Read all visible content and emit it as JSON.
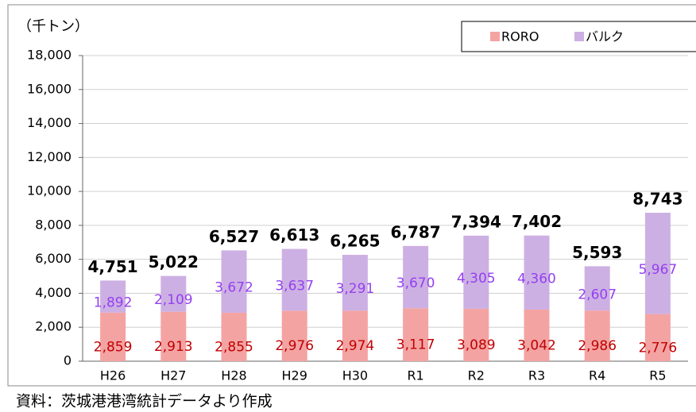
{
  "chart_data": {
    "type": "stacked_bar",
    "y_unit_label": "（千トン）",
    "source": "資料：茨城港港湾統計データより作成",
    "categories": [
      "H26",
      "H27",
      "H28",
      "H29",
      "H30",
      "R1",
      "R2",
      "R3",
      "R4",
      "R5"
    ],
    "series": [
      {
        "name": "RORO",
        "color": "#f4a3a3",
        "label_color": "#c00000",
        "values": [
          2859,
          2913,
          2855,
          2976,
          2974,
          3117,
          3089,
          3042,
          2986,
          2776
        ],
        "value_labels": [
          "2,859",
          "2,913",
          "2,855",
          "2,976",
          "2,974",
          "3,117",
          "3,089",
          "3,042",
          "2,986",
          "2,776"
        ]
      },
      {
        "name": "バルク",
        "color": "#cdb0e3",
        "label_color": "#9440f0",
        "values": [
          1892,
          2109,
          3672,
          3637,
          3291,
          3670,
          4305,
          4360,
          2607,
          5967
        ],
        "value_labels": [
          "1,892",
          "2,109",
          "3,672",
          "3,637",
          "3,291",
          "3,670",
          "4,305",
          "4,360",
          "2,607",
          "5,967"
        ]
      }
    ],
    "totals": [
      4751,
      5022,
      6527,
      6613,
      6265,
      6787,
      7394,
      7402,
      5593,
      8743
    ],
    "total_labels": [
      "4,751",
      "5,022",
      "6,527",
      "6,613",
      "6,265",
      "6,787",
      "7,394",
      "7,402",
      "5,593",
      "8,743"
    ],
    "ylim": [
      0,
      18000
    ],
    "yticks": [
      0,
      {
        "value": 2000,
        "label": "2,000"
      },
      {
        "value": 4000,
        "label": "4,000"
      },
      {
        "value": 6000,
        "label": "6,000"
      },
      {
        "value": 8000,
        "label": "8,000"
      },
      {
        "value": 10000,
        "label": "10,000"
      },
      {
        "value": 12000,
        "label": "12,000"
      },
      {
        "value": 14000,
        "label": "14,000"
      },
      {
        "value": 16000,
        "label": "16,000"
      },
      {
        "value": 18000,
        "label": "18,000"
      }
    ],
    "grid": true
  }
}
